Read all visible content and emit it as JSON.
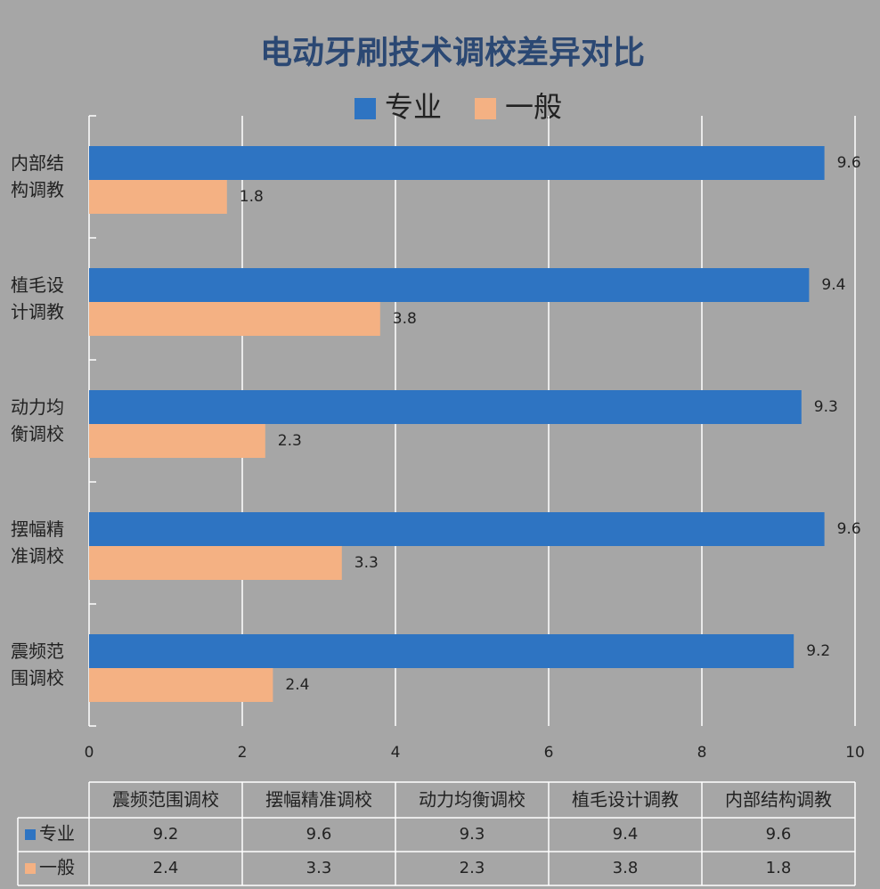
{
  "chart_data": {
    "type": "hbar",
    "title": "电动牙刷技术调校差异对比",
    "categories": [
      "震频范围调校",
      "摆幅精准调校",
      "动力均衡调校",
      "植毛设计调教",
      "内部结构调教"
    ],
    "series": [
      {
        "name": "专业",
        "color": "#2e74c2",
        "values": [
          9.2,
          9.6,
          9.3,
          9.4,
          9.6
        ]
      },
      {
        "name": "一般",
        "color": "#f4b183",
        "values": [
          2.4,
          3.3,
          2.3,
          3.8,
          1.8
        ]
      }
    ],
    "xlim": [
      0,
      10
    ],
    "xticks": [
      0,
      2,
      4,
      6,
      8,
      10
    ],
    "grid": true,
    "legend": "top",
    "data_table": true
  }
}
